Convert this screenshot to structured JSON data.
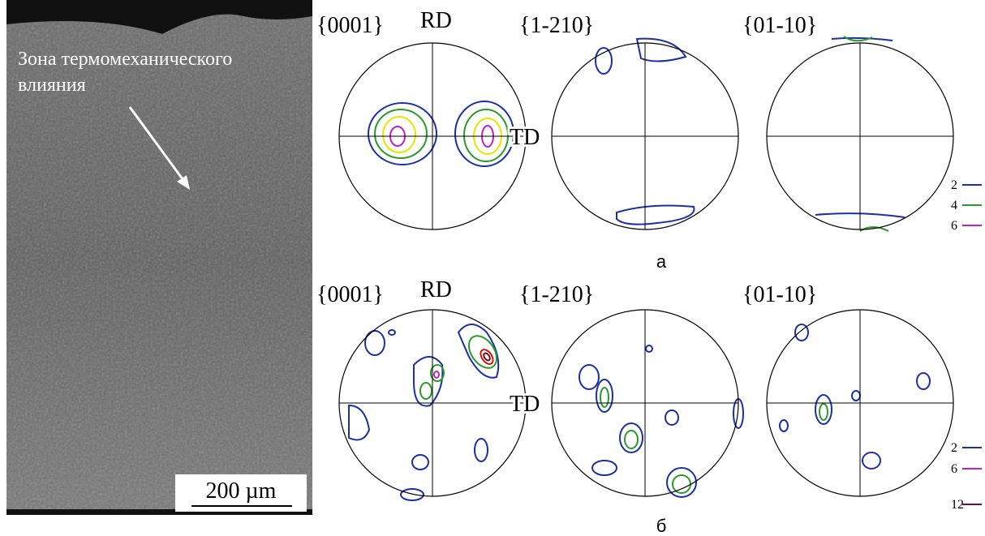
{
  "micrograph": {
    "annotation": [
      "Зона термомеханического",
      "влияния"
    ],
    "scale_bar": "200 µm"
  },
  "panels": [
    {
      "label": "а",
      "rd": "RD",
      "td": "TD",
      "figures": [
        {
          "title": "{0001}"
        },
        {
          "title": "{1-210}"
        },
        {
          "title": "{01-10}"
        }
      ],
      "legend": [
        "2",
        "4",
        "6"
      ]
    },
    {
      "label": "б",
      "rd": "RD",
      "td": "TD",
      "figures": [
        {
          "title": "{0001}"
        },
        {
          "title": "{1-210}"
        },
        {
          "title": "{01-10}"
        }
      ],
      "legend": [
        "2",
        "6",
        "12"
      ]
    }
  ]
}
